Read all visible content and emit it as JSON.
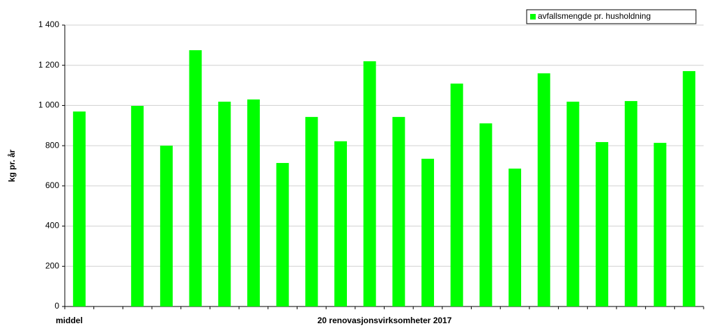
{
  "chart_data": {
    "type": "bar",
    "y_label": "kg pr. år",
    "x_label": "20 renovasjonsvirksomheter 2017",
    "categories": [
      "middel",
      null,
      null,
      null,
      null,
      null,
      null,
      null,
      null,
      null,
      null,
      null,
      null,
      null,
      null,
      null,
      null,
      null,
      null,
      null,
      null,
      null
    ],
    "series": [
      {
        "name": "avfallsmengde pr. husholdning",
        "color": "#00ff00",
        "values": [
          970,
          null,
          998,
          800,
          1275,
          1019,
          1030,
          714,
          943,
          822,
          1220,
          943,
          735,
          1109,
          911,
          686,
          1160,
          1019,
          818,
          1022,
          814,
          1171
        ]
      }
    ],
    "ylim": [
      0,
      1400
    ],
    "yticks": [
      0,
      200,
      400,
      600,
      800,
      {
        "value": 1000,
        "label": "1 000"
      },
      {
        "value": 1200,
        "label": "1 200"
      },
      {
        "value": 1400,
        "label": "1 400"
      }
    ],
    "grid": true,
    "legend": "top-right"
  }
}
